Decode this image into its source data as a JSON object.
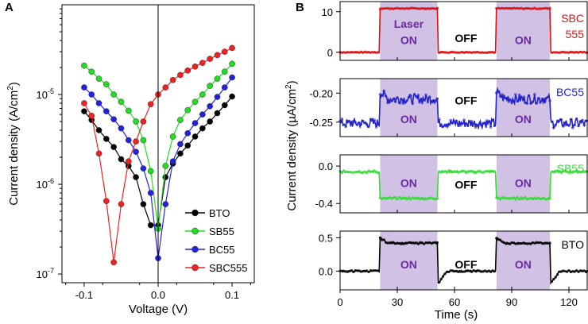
{
  "chart_data": [
    {
      "panel": "A",
      "type": "scatter",
      "xlabel": "Voltage (V)",
      "ylabel_parts": [
        "Current density (A/cm",
        "2",
        ")"
      ],
      "xlim": [
        -0.13,
        0.13
      ],
      "ylim": [
        8e-08,
        0.0001
      ],
      "y_scale": "log",
      "x_ticks": [
        -0.1,
        0,
        0.1
      ],
      "x_tick_labels": [
        "-0.1",
        "0.0",
        "0.1"
      ],
      "y_ticks": [
        1e-07,
        1e-06,
        1e-05
      ],
      "y_tick_labels": [
        [
          "10",
          "-7"
        ],
        [
          "10",
          "-6"
        ],
        [
          "10",
          "-5"
        ]
      ],
      "legend_position": "bottom-right",
      "series": [
        {
          "name": "BTO",
          "color": "#000000",
          "x": [
            -0.1,
            -0.09,
            -0.08,
            -0.07,
            -0.06,
            -0.05,
            -0.04,
            -0.03,
            -0.02,
            -0.01,
            0,
            0.01,
            0.02,
            0.03,
            0.04,
            0.05,
            0.06,
            0.07,
            0.08,
            0.09,
            0.1
          ],
          "y": [
            6.5e-06,
            5.2e-06,
            4e-06,
            3.2e-06,
            2.6e-06,
            1.9e-06,
            1.6e-06,
            1.2e-06,
            6e-07,
            3.5e-07,
            3.5e-07,
            1.2e-06,
            1.7e-06,
            2.2e-06,
            2.7e-06,
            3.4e-06,
            4.2e-06,
            5e-06,
            6.2e-06,
            7.6e-06,
            9.5e-06
          ]
        },
        {
          "name": "SB55",
          "color": "#22dd22",
          "x": [
            -0.1,
            -0.09,
            -0.08,
            -0.07,
            -0.06,
            -0.05,
            -0.04,
            -0.03,
            -0.02,
            -0.01,
            0,
            0.01,
            0.02,
            0.03,
            0.04,
            0.05,
            0.06,
            0.07,
            0.08,
            0.09,
            0.1
          ],
          "y": [
            2.1e-05,
            1.8e-05,
            1.5e-05,
            1.3e-05,
            1e-05,
            8.3e-06,
            6.6e-06,
            5e-06,
            3.1e-06,
            1.4e-06,
            3.2e-07,
            1.6e-06,
            3.4e-06,
            5.2e-06,
            6.7e-06,
            8.3e-06,
            1e-05,
            1.25e-05,
            1.5e-05,
            1.8e-05,
            2.2e-05
          ]
        },
        {
          "name": "BC55",
          "color": "#2222dd",
          "x": [
            -0.1,
            -0.09,
            -0.08,
            -0.07,
            -0.06,
            -0.05,
            -0.04,
            -0.03,
            -0.02,
            -0.01,
            0,
            0.01,
            0.02,
            0.03,
            0.04,
            0.05,
            0.06,
            0.07,
            0.08,
            0.09,
            0.1
          ],
          "y": [
            1.2e-05,
            1e-05,
            8e-06,
            6.5e-06,
            5.3e-06,
            4.2e-06,
            3.1e-06,
            2.3e-06,
            1.5e-06,
            8e-07,
            1.5e-07,
            6e-07,
            1.8e-06,
            2.8e-06,
            3.7e-06,
            4.8e-06,
            6e-06,
            7.4e-06,
            9.4e-06,
            1.2e-05,
            1.55e-05
          ]
        },
        {
          "name": "SBC555",
          "color": "#ee2222",
          "x": [
            -0.1,
            -0.09,
            -0.08,
            -0.07,
            -0.06,
            -0.05,
            -0.04,
            -0.03,
            -0.02,
            -0.01,
            0,
            0.01,
            0.02,
            0.03,
            0.04,
            0.05,
            0.06,
            0.07,
            0.08,
            0.09,
            0.1
          ],
          "y": [
            8e-06,
            5.8e-06,
            2.2e-06,
            6.5e-07,
            1.35e-07,
            6e-07,
            1.8e-06,
            3e-06,
            5e-06,
            7.8e-06,
            1e-05,
            1.2e-05,
            1.45e-05,
            1.65e-05,
            1.85e-05,
            2.05e-05,
            2.25e-05,
            2.5e-05,
            2.75e-05,
            3e-05,
            3.3e-05
          ]
        }
      ]
    },
    {
      "panel": "B",
      "type": "line",
      "xlabel": "Time (s)",
      "ylabel_parts": [
        "Current density (µA/cm",
        "2",
        ")"
      ],
      "xlim": [
        0,
        130
      ],
      "x_ticks": [
        0,
        30,
        60,
        90,
        120
      ],
      "x_tick_labels": [
        "0",
        "30",
        "60",
        "90",
        "120"
      ],
      "laser_on_intervals": [
        [
          21,
          51
        ],
        [
          82,
          110
        ]
      ],
      "shade_color": "#c9b6e0",
      "subplots": [
        {
          "name": "SBC555",
          "label_lines": [
            "SBC",
            "555"
          ],
          "color": "#dd1111",
          "ylim": [
            -2,
            12.5
          ],
          "y_ticks": [
            0,
            10
          ],
          "y_tick_labels": [
            "0",
            "10"
          ],
          "off_level": 0,
          "on_level": 10.8,
          "noise": 0.12,
          "rise_transient": 0,
          "fall_transient": 0,
          "annotations": [
            {
              "text": "Laser",
              "x": 36,
              "y": 7
            },
            {
              "text": "ON",
              "x": 36,
              "y": 3
            },
            {
              "text": "OFF",
              "x": 66,
              "y": 3.5
            },
            {
              "text": "ON",
              "x": 96,
              "y": 3
            }
          ]
        },
        {
          "name": "BC55",
          "label_lines": [
            "BC55"
          ],
          "color": "#2222cc",
          "ylim": [
            -0.275,
            -0.175
          ],
          "y_ticks": [
            -0.25,
            -0.2
          ],
          "y_tick_labels": [
            "-0.25",
            "-0.20"
          ],
          "off_level": -0.252,
          "on_level": -0.21,
          "noise": 0.008,
          "rise_transient": 0.012,
          "fall_transient": 0,
          "annotations": [
            {
              "text": "ON",
              "x": 36,
              "y": -0.245
            },
            {
              "text": "OFF",
              "x": 66,
              "y": -0.213
            },
            {
              "text": "ON",
              "x": 96,
              "y": -0.245
            }
          ]
        },
        {
          "name": "SB55",
          "label_lines": [
            "SB55"
          ],
          "color": "#33dd33",
          "ylim": [
            -0.5,
            0.12
          ],
          "y_ticks": [
            -0.4,
            0.0
          ],
          "y_tick_labels": [
            "-0.4",
            "0.0"
          ],
          "off_level": -0.06,
          "on_level": -0.345,
          "noise": 0.012,
          "rise_transient": 0,
          "fall_transient": 0,
          "annotations": [
            {
              "text": "ON",
              "x": 36,
              "y": -0.18
            },
            {
              "text": "OFF",
              "x": 66,
              "y": -0.2
            },
            {
              "text": "ON",
              "x": 96,
              "y": -0.18
            }
          ]
        },
        {
          "name": "BTO",
          "label_lines": [
            "BTO"
          ],
          "color": "#000000",
          "ylim": [
            -0.28,
            0.6
          ],
          "y_ticks": [
            0.0,
            0.5
          ],
          "y_tick_labels": [
            "0.0",
            "0.5"
          ],
          "off_level": 0.0,
          "on_level": 0.42,
          "noise": 0.012,
          "rise_transient": 0.08,
          "fall_transient": -0.2,
          "annotations": [
            {
              "text": "ON",
              "x": 36,
              "y": 0.1
            },
            {
              "text": "OFF",
              "x": 66,
              "y": 0.1
            },
            {
              "text": "ON",
              "x": 96,
              "y": 0.1
            }
          ]
        }
      ]
    }
  ],
  "panel_labels": {
    "a": "A",
    "b": "B"
  }
}
